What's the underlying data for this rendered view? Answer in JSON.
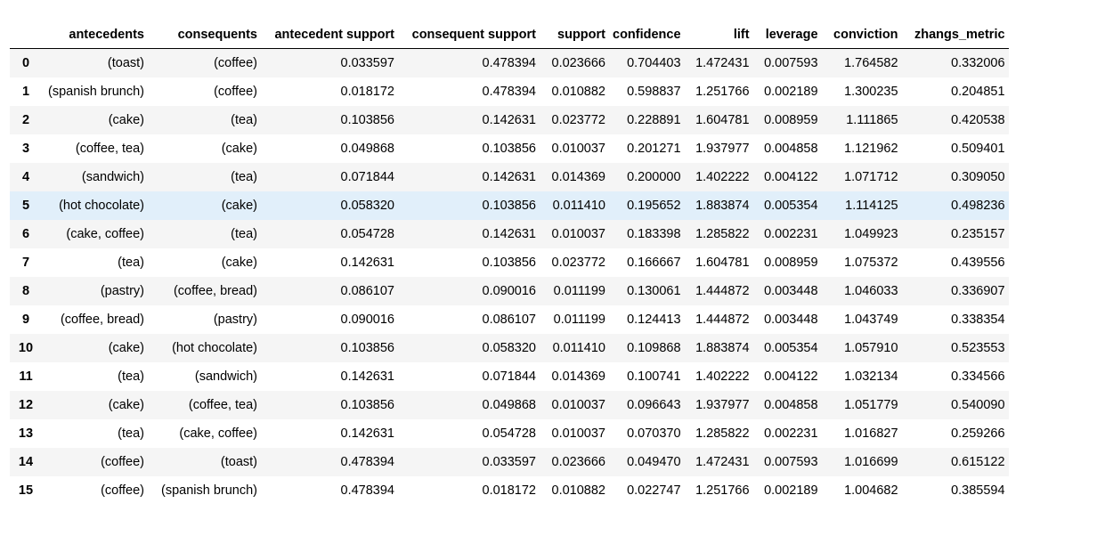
{
  "table": {
    "index_header": "",
    "columns": [
      "antecedents",
      "consequents",
      "antecedent support",
      "consequent support",
      "support",
      "confidence",
      "lift",
      "leverage",
      "conviction",
      "zhangs_metric"
    ],
    "rows": [
      {
        "index": "0",
        "cells": [
          "(toast)",
          "(coffee)",
          "0.033597",
          "0.478394",
          "0.023666",
          "0.704403",
          "1.472431",
          "0.007593",
          "1.764582",
          "0.332006"
        ]
      },
      {
        "index": "1",
        "cells": [
          "(spanish brunch)",
          "(coffee)",
          "0.018172",
          "0.478394",
          "0.010882",
          "0.598837",
          "1.251766",
          "0.002189",
          "1.300235",
          "0.204851"
        ]
      },
      {
        "index": "2",
        "cells": [
          "(cake)",
          "(tea)",
          "0.103856",
          "0.142631",
          "0.023772",
          "0.228891",
          "1.604781",
          "0.008959",
          "1.111865",
          "0.420538"
        ]
      },
      {
        "index": "3",
        "cells": [
          "(coffee, tea)",
          "(cake)",
          "0.049868",
          "0.103856",
          "0.010037",
          "0.201271",
          "1.937977",
          "0.004858",
          "1.121962",
          "0.509401"
        ]
      },
      {
        "index": "4",
        "cells": [
          "(sandwich)",
          "(tea)",
          "0.071844",
          "0.142631",
          "0.014369",
          "0.200000",
          "1.402222",
          "0.004122",
          "1.071712",
          "0.309050"
        ]
      },
      {
        "index": "5",
        "cells": [
          "(hot chocolate)",
          "(cake)",
          "0.058320",
          "0.103856",
          "0.011410",
          "0.195652",
          "1.883874",
          "0.005354",
          "1.114125",
          "0.498236"
        ]
      },
      {
        "index": "6",
        "cells": [
          "(cake, coffee)",
          "(tea)",
          "0.054728",
          "0.142631",
          "0.010037",
          "0.183398",
          "1.285822",
          "0.002231",
          "1.049923",
          "0.235157"
        ]
      },
      {
        "index": "7",
        "cells": [
          "(tea)",
          "(cake)",
          "0.142631",
          "0.103856",
          "0.023772",
          "0.166667",
          "1.604781",
          "0.008959",
          "1.075372",
          "0.439556"
        ]
      },
      {
        "index": "8",
        "cells": [
          "(pastry)",
          "(coffee, bread)",
          "0.086107",
          "0.090016",
          "0.011199",
          "0.130061",
          "1.444872",
          "0.003448",
          "1.046033",
          "0.336907"
        ]
      },
      {
        "index": "9",
        "cells": [
          "(coffee, bread)",
          "(pastry)",
          "0.090016",
          "0.086107",
          "0.011199",
          "0.124413",
          "1.444872",
          "0.003448",
          "1.043749",
          "0.338354"
        ]
      },
      {
        "index": "10",
        "cells": [
          "(cake)",
          "(hot chocolate)",
          "0.103856",
          "0.058320",
          "0.011410",
          "0.109868",
          "1.883874",
          "0.005354",
          "1.057910",
          "0.523553"
        ]
      },
      {
        "index": "11",
        "cells": [
          "(tea)",
          "(sandwich)",
          "0.142631",
          "0.071844",
          "0.014369",
          "0.100741",
          "1.402222",
          "0.004122",
          "1.032134",
          "0.334566"
        ]
      },
      {
        "index": "12",
        "cells": [
          "(cake)",
          "(coffee, tea)",
          "0.103856",
          "0.049868",
          "0.010037",
          "0.096643",
          "1.937977",
          "0.004858",
          "1.051779",
          "0.540090"
        ]
      },
      {
        "index": "13",
        "cells": [
          "(tea)",
          "(cake, coffee)",
          "0.142631",
          "0.054728",
          "0.010037",
          "0.070370",
          "1.285822",
          "0.002231",
          "1.016827",
          "0.259266"
        ]
      },
      {
        "index": "14",
        "cells": [
          "(coffee)",
          "(toast)",
          "0.478394",
          "0.033597",
          "0.023666",
          "0.049470",
          "1.472431",
          "0.007593",
          "1.016699",
          "0.615122"
        ]
      },
      {
        "index": "15",
        "cells": [
          "(coffee)",
          "(spanish brunch)",
          "0.478394",
          "0.018172",
          "0.010882",
          "0.022747",
          "1.251766",
          "0.002189",
          "1.004682",
          "0.385594"
        ]
      }
    ],
    "hovered_row": "5",
    "colors": {
      "stripe": "#f5f5f5",
      "hover": "#e1effa",
      "header_rule": "#000000"
    }
  }
}
